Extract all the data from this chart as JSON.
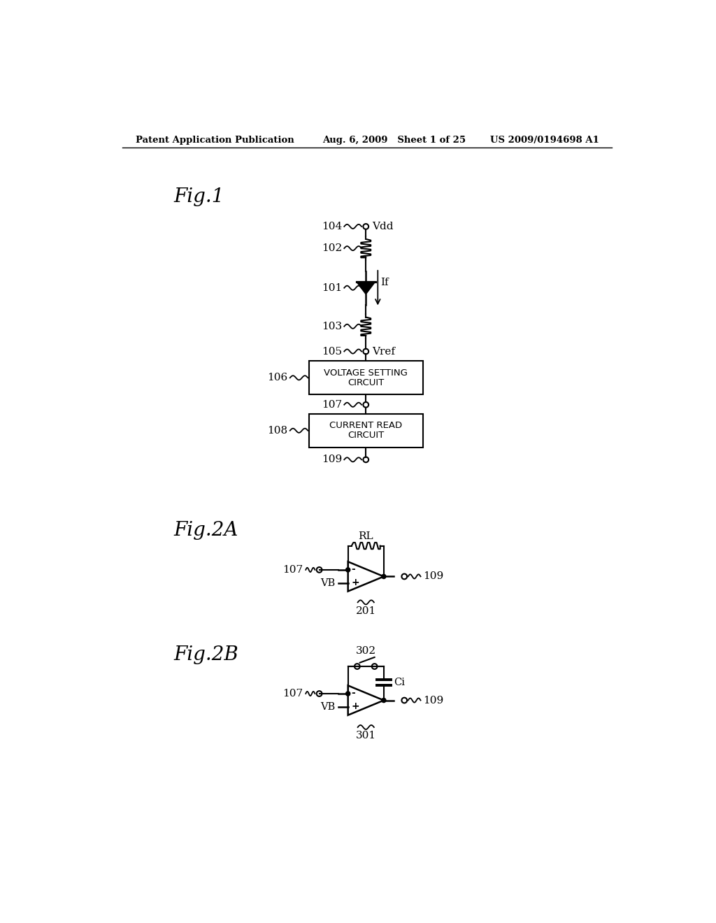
{
  "bg_color": "#ffffff",
  "text_color": "#000000",
  "header_left": "Patent Application Publication",
  "header_center": "Aug. 6, 2009   Sheet 1 of 25",
  "header_right": "US 2009/0194698 A1",
  "fig1_label": "Fig.1",
  "fig2a_label": "Fig.2A",
  "fig2b_label": "Fig.2B"
}
